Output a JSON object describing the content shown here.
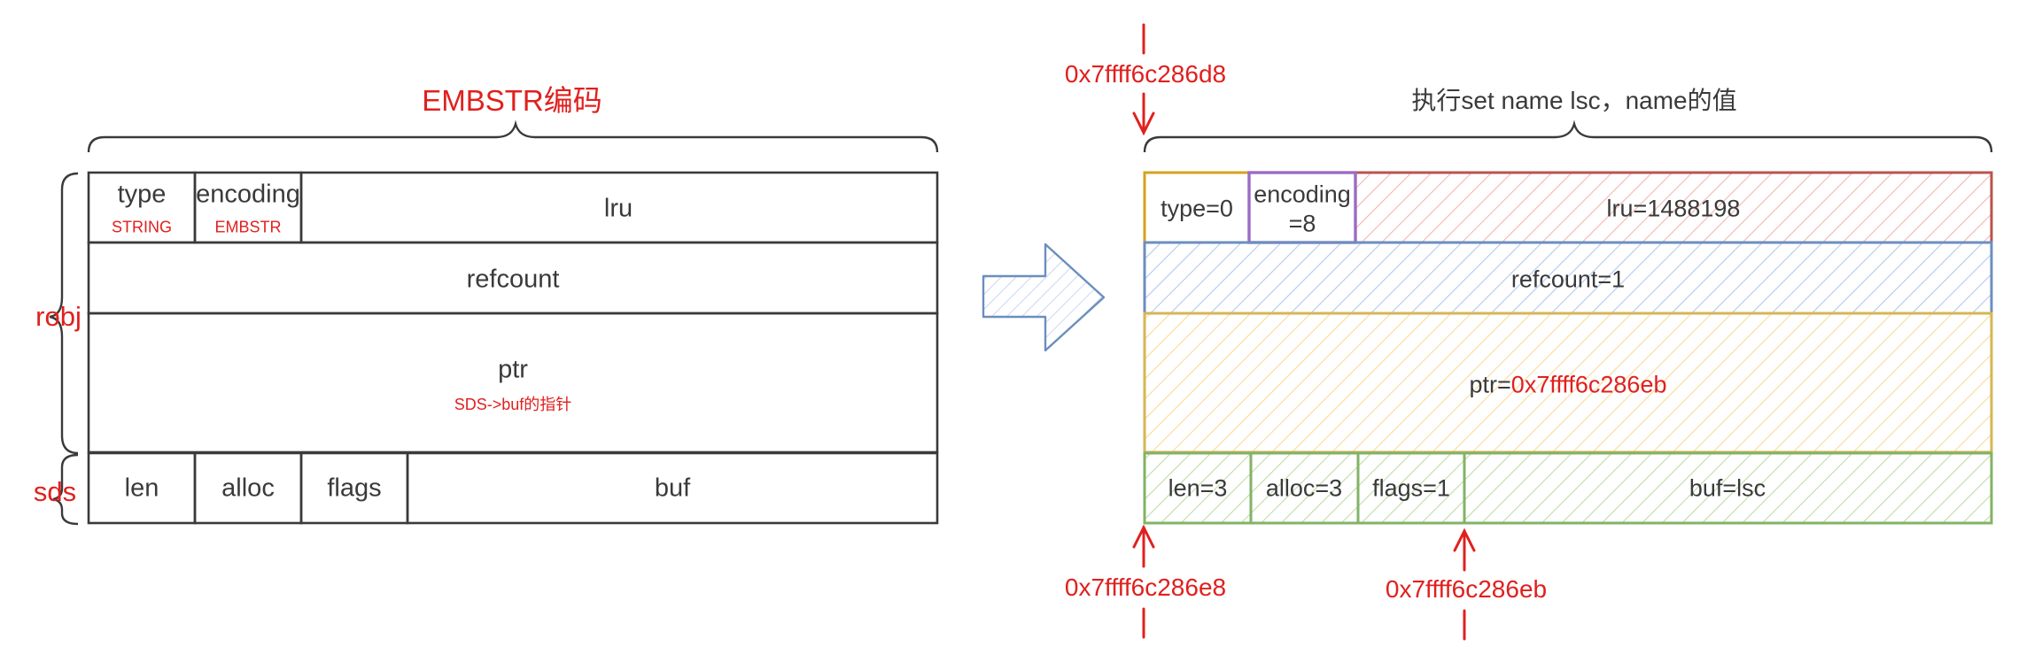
{
  "left": {
    "title": "EMBSTR编码",
    "robj_label": "robj",
    "sds_label": "sds",
    "type": {
      "label": "type",
      "value": "STRING"
    },
    "encoding": {
      "label": "encoding",
      "value": "EMBSTR"
    },
    "lru": "lru",
    "refcount": "refcount",
    "ptr": {
      "label": "ptr",
      "note": "SDS->buf的指针"
    },
    "len": "len",
    "alloc": "alloc",
    "flags": "flags",
    "buf": "buf"
  },
  "right": {
    "caption": "执行set name lsc，name的值",
    "type": "type=0",
    "encoding_line1": "encoding",
    "encoding_line2": "=8",
    "lru": "lru=1488198",
    "refcount": "refcount=1",
    "ptr_prefix": "ptr=",
    "ptr_value": "0x7ffff6c286eb",
    "len": "len=3",
    "alloc": "alloc=3",
    "flags": "flags=1",
    "buf": "buf=lsc",
    "addr_top": "0x7ffff6c286d8",
    "addr_sds": "0x7ffff6c286e8",
    "addr_buf": "0x7ffff6c286eb"
  },
  "colors": {
    "outline": "#3a3a3a",
    "red": "#e0201e",
    "type_border": "#d6a21e",
    "encoding_border": "#9b6bc4",
    "lru_border": "#b85450",
    "lru_fill": "#f4b6b0",
    "refcount_border": "#6c8ebf",
    "refcount_fill": "#b3c9ec",
    "ptr_border": "#d6b656",
    "ptr_fill": "#f6dc97",
    "sds_border": "#82b366",
    "sds_fill": "#bfdca8",
    "arrow_border": "#6c8ebf",
    "arrow_fill": "#c7d8f0"
  }
}
